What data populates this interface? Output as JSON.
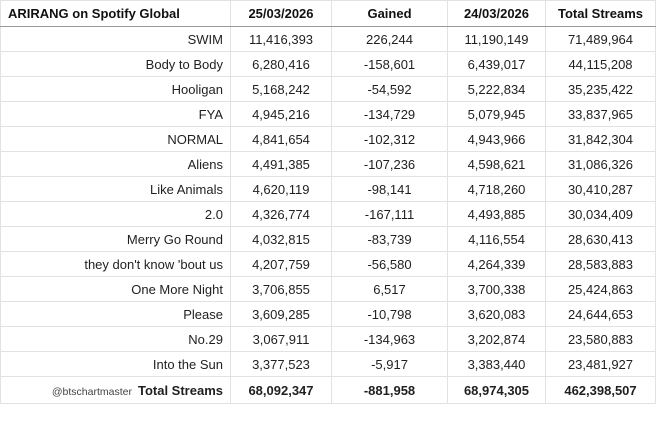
{
  "header": {
    "title": "ARIRANG on Spotify Global",
    "col_date1": "25/03/2026",
    "col_gained": "Gained",
    "col_date2": "24/03/2026",
    "col_total": "Total Streams"
  },
  "rows": [
    {
      "song": "SWIM",
      "d1": "11,416,393",
      "gained": "226,244",
      "d2": "11,190,149",
      "total": "71,489,964"
    },
    {
      "song": "Body to Body",
      "d1": "6,280,416",
      "gained": "-158,601",
      "d2": "6,439,017",
      "total": "44,115,208"
    },
    {
      "song": "Hooligan",
      "d1": "5,168,242",
      "gained": "-54,592",
      "d2": "5,222,834",
      "total": "35,235,422"
    },
    {
      "song": "FYA",
      "d1": "4,945,216",
      "gained": "-134,729",
      "d2": "5,079,945",
      "total": "33,837,965"
    },
    {
      "song": "NORMAL",
      "d1": "4,841,654",
      "gained": "-102,312",
      "d2": "4,943,966",
      "total": "31,842,304"
    },
    {
      "song": "Aliens",
      "d1": "4,491,385",
      "gained": "-107,236",
      "d2": "4,598,621",
      "total": "31,086,326"
    },
    {
      "song": "Like Animals",
      "d1": "4,620,119",
      "gained": "-98,141",
      "d2": "4,718,260",
      "total": "30,410,287"
    },
    {
      "song": "2.0",
      "d1": "4,326,774",
      "gained": "-167,111",
      "d2": "4,493,885",
      "total": "30,034,409"
    },
    {
      "song": "Merry Go Round",
      "d1": "4,032,815",
      "gained": "-83,739",
      "d2": "4,116,554",
      "total": "28,630,413"
    },
    {
      "song": "they don't know 'bout us",
      "d1": "4,207,759",
      "gained": "-56,580",
      "d2": "4,264,339",
      "total": "28,583,883"
    },
    {
      "song": "One More Night",
      "d1": "3,706,855",
      "gained": "6,517",
      "d2": "3,700,338",
      "total": "25,424,863"
    },
    {
      "song": "Please",
      "d1": "3,609,285",
      "gained": "-10,798",
      "d2": "3,620,083",
      "total": "24,644,653"
    },
    {
      "song": "No.29",
      "d1": "3,067,911",
      "gained": "-134,963",
      "d2": "3,202,874",
      "total": "23,580,883"
    },
    {
      "song": "Into the Sun",
      "d1": "3,377,523",
      "gained": "-5,917",
      "d2": "3,383,440",
      "total": "23,481,927"
    }
  ],
  "footer": {
    "credit": "@btschartmaster",
    "label": "Total Streams",
    "d1": "68,092,347",
    "gained": "-881,958",
    "d2": "68,974,305",
    "total": "462,398,507"
  }
}
